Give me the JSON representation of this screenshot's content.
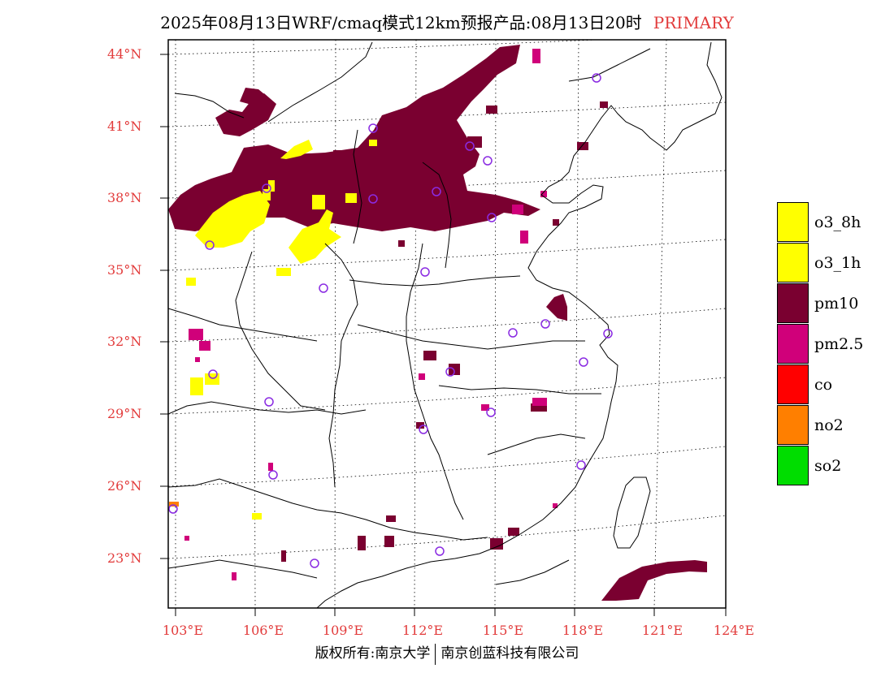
{
  "header": {
    "title": "2025年08月13日WRF/cmaq模式12km预报产品:08月13日20时",
    "tag": "PRIMARY"
  },
  "axes": {
    "lat_labels": [
      "44°N",
      "41°N",
      "38°N",
      "35°N",
      "32°N",
      "29°N",
      "26°N",
      "23°N"
    ],
    "lon_labels": [
      "103°E",
      "106°E",
      "109°E",
      "112°E",
      "115°E",
      "118°E",
      "121°E",
      "124°E"
    ]
  },
  "legend": [
    {
      "label": "o3_8h",
      "color": "#ffff00"
    },
    {
      "label": "o3_1h",
      "color": "#ffff00"
    },
    {
      "label": "pm10",
      "color": "#7a0030"
    },
    {
      "label": "pm2.5",
      "color": "#d0007a"
    },
    {
      "label": "co",
      "color": "#ff0000"
    },
    {
      "label": "no2",
      "color": "#ff7f00"
    },
    {
      "label": "so2",
      "color": "#00dd00"
    }
  ],
  "colors": {
    "pm10": "#7a0030",
    "pm25": "#d0007a",
    "o3": "#ffff00",
    "station": "#8a2be2",
    "axis_label": "#e23b3b"
  },
  "footer": {
    "left": "版权所有:南京大学",
    "right": "南京创蓝科技有限公司"
  }
}
